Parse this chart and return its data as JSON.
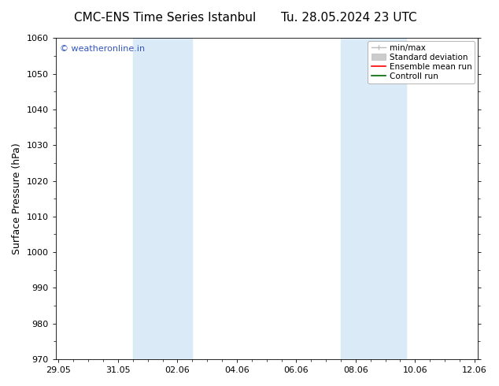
{
  "title_left": "CMC-ENS Time Series Istanbul",
  "title_right": "Tu. 28.05.2024 23 UTC",
  "ylabel": "Surface Pressure (hPa)",
  "xlabel_ticks": [
    "29.05",
    "31.05",
    "02.06",
    "04.06",
    "06.06",
    "08.06",
    "10.06",
    "12.06"
  ],
  "xtick_positions": [
    0,
    2,
    4,
    6,
    8,
    10,
    12,
    14
  ],
  "ylim": [
    970,
    1060
  ],
  "yticks": [
    970,
    980,
    990,
    1000,
    1010,
    1020,
    1030,
    1040,
    1050,
    1060
  ],
  "xlim": [
    -0.1,
    14.1
  ],
  "shaded_bands": [
    {
      "x_start": 2.5,
      "x_end": 4.5
    },
    {
      "x_start": 9.5,
      "x_end": 10.5
    },
    {
      "x_start": 10.5,
      "x_end": 11.7
    }
  ],
  "shade_color": "#daeaf7",
  "watermark_text": "© weatheronline.in",
  "watermark_color": "#3355bb",
  "legend_labels": [
    "min/max",
    "Standard deviation",
    "Ensemble mean run",
    "Controll run"
  ],
  "legend_colors": [
    "#aaaaaa",
    "#cccccc",
    "red",
    "green"
  ],
  "bg_color": "#ffffff",
  "title_fontsize": 11,
  "tick_fontsize": 8,
  "ylabel_fontsize": 9,
  "legend_fontsize": 7.5,
  "watermark_fontsize": 8
}
